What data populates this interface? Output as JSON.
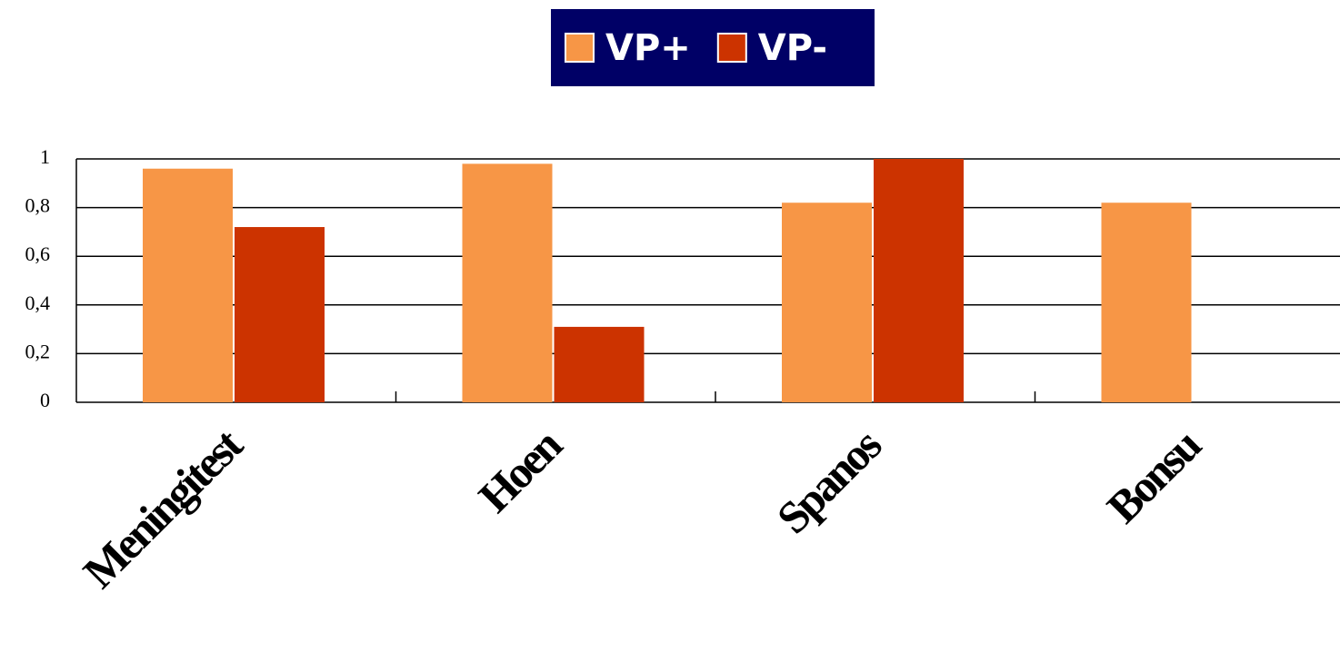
{
  "chart_data": {
    "type": "bar",
    "categories": [
      "Meningitest",
      "Hoen",
      "Spanos",
      "Bonsu"
    ],
    "series": [
      {
        "name": "VP+",
        "color": "#f79646",
        "values": [
          0.96,
          0.98,
          0.82,
          0.82
        ]
      },
      {
        "name": "VP-",
        "color": "#cc3300",
        "values": [
          0.72,
          0.31,
          1.0,
          null
        ]
      }
    ],
    "ylim": [
      0,
      1
    ],
    "yticks": [
      0,
      {
        "value": 0.2,
        "label": "0,2"
      },
      {
        "value": 0.4,
        "label": "0,4"
      },
      {
        "value": 0.6,
        "label": "0,6"
      },
      {
        "value": 0.8,
        "label": "0,8"
      },
      1
    ],
    "grid": true,
    "legend": "top"
  }
}
